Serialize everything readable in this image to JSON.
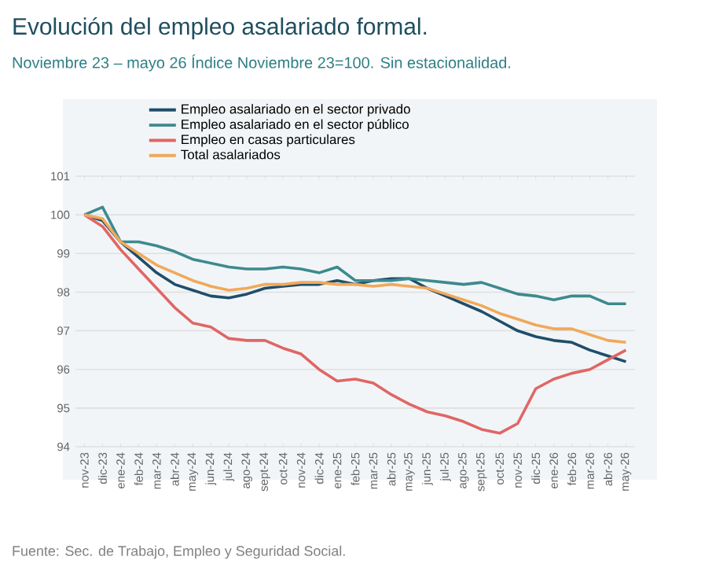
{
  "chart_data": {
    "type": "line",
    "title": "Evolución del empleo asalariado formal.",
    "subtitle": "Noviembre 23 – mayo 26 Índice Noviembre 23=100. Sin estacionalidad.",
    "categories": [
      "nov-23",
      "dic-23",
      "ene-24",
      "feb-24",
      "mar-24",
      "abr-24",
      "may-24",
      "jun-24",
      "jul-24",
      "ago-24",
      "sept-24",
      "oct-24",
      "nov-24",
      "dic-24",
      "ene-25",
      "feb-25",
      "mar-25",
      "abr-25",
      "may-25",
      "jun-25",
      "jul-25",
      "ago-25",
      "sept-25",
      "oct-25",
      "nov-25",
      "dic-25",
      "ene-26",
      "feb-26",
      "mar-26",
      "abr-26",
      "may-26"
    ],
    "series": [
      {
        "name": "Empleo asalariado en el sector privado",
        "color": "#1f4e6b",
        "values": [
          100,
          99.85,
          99.3,
          98.9,
          98.5,
          98.2,
          98.05,
          97.9,
          97.85,
          97.95,
          98.1,
          98.15,
          98.2,
          98.2,
          98.3,
          98.2,
          98.3,
          98.35,
          98.35,
          98.1,
          97.9,
          97.7,
          97.5,
          97.25,
          97.0,
          96.85,
          96.75,
          96.7,
          96.5,
          96.35,
          96.2
        ]
      },
      {
        "name": "Empleo asalariado en el sector público",
        "color": "#3d8a8f",
        "values": [
          100,
          100.2,
          99.3,
          99.3,
          99.2,
          99.05,
          98.85,
          98.75,
          98.65,
          98.6,
          98.6,
          98.65,
          98.6,
          98.5,
          98.65,
          98.3,
          98.3,
          98.3,
          98.35,
          98.3,
          98.25,
          98.2,
          98.25,
          98.1,
          97.95,
          97.9,
          97.8,
          97.9,
          97.9,
          97.7,
          97.7
        ]
      },
      {
        "name": "Empleo en casas particulares",
        "color": "#e06666",
        "values": [
          100,
          99.7,
          99.1,
          98.6,
          98.1,
          97.6,
          97.2,
          97.1,
          96.8,
          96.75,
          96.75,
          96.55,
          96.4,
          96.0,
          95.7,
          95.75,
          95.65,
          95.35,
          95.1,
          94.9,
          94.8,
          94.65,
          94.45,
          94.35,
          94.6,
          95.5,
          95.75,
          95.9,
          96.0,
          96.25,
          96.5
        ]
      },
      {
        "name": "Total asalariados",
        "color": "#f0a95a",
        "values": [
          100,
          99.9,
          99.3,
          99.0,
          98.7,
          98.5,
          98.3,
          98.15,
          98.05,
          98.1,
          98.2,
          98.2,
          98.25,
          98.25,
          98.2,
          98.2,
          98.15,
          98.2,
          98.15,
          98.1,
          97.95,
          97.8,
          97.65,
          97.45,
          97.3,
          97.15,
          97.05,
          97.05,
          96.9,
          96.75,
          96.7
        ]
      }
    ],
    "ylim": [
      94,
      101
    ],
    "yticks": [
      94,
      95,
      96,
      97,
      98,
      99,
      100,
      101
    ],
    "grid": "y",
    "legend": "top",
    "marker": "none",
    "line_style": "solid",
    "annotations": [
      "Fuente: Sec. de Trabajo, Empleo y Seguridad Social."
    ]
  }
}
